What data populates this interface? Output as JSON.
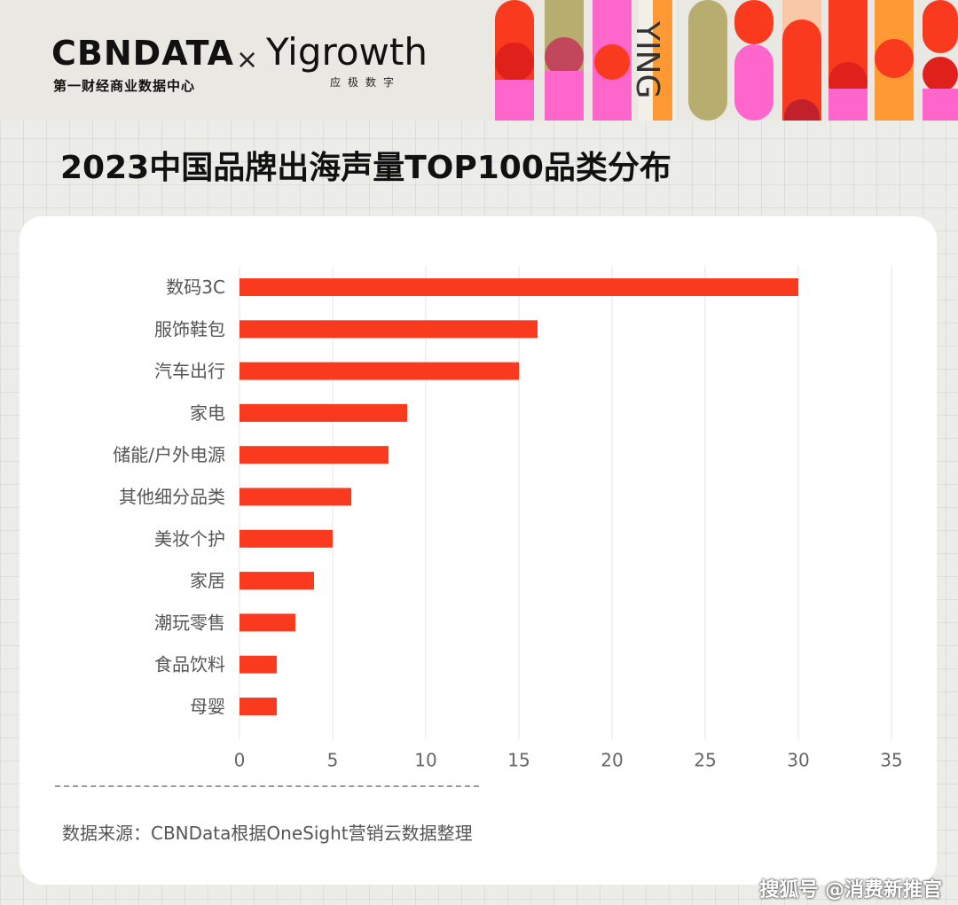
{
  "header": {
    "logo_main": "CBNDATA",
    "logo_sub": "第一财经商业数据中心",
    "logo_x": "×",
    "partner_logo": "Yigrowth",
    "partner_sub": "应极数字",
    "deco_text": "YING"
  },
  "title": "2023中国品牌出海声量TOP100品类分布",
  "source": "数据来源：CBNData根据OneSight营销云数据整理",
  "watermark": "搜狐号 @消费新推官",
  "bar_color": "#fa3a1e",
  "chart_data": {
    "type": "bar",
    "orientation": "horizontal",
    "categories": [
      "数码3C",
      "服饰鞋包",
      "汽车出行",
      "家电",
      "储能/户外电源",
      "其他细分品类",
      "美妆个护",
      "家居",
      "潮玩零售",
      "食品饮料",
      "母婴"
    ],
    "values": [
      30,
      16,
      15,
      9,
      8,
      6,
      5,
      4,
      3,
      2,
      2
    ],
    "xlim": [
      0,
      35
    ],
    "xticks": [
      "0",
      "5",
      "10",
      "15",
      "20",
      "25",
      "30",
      "35"
    ],
    "xlabel": "",
    "ylabel": "",
    "grid": "vertical"
  }
}
